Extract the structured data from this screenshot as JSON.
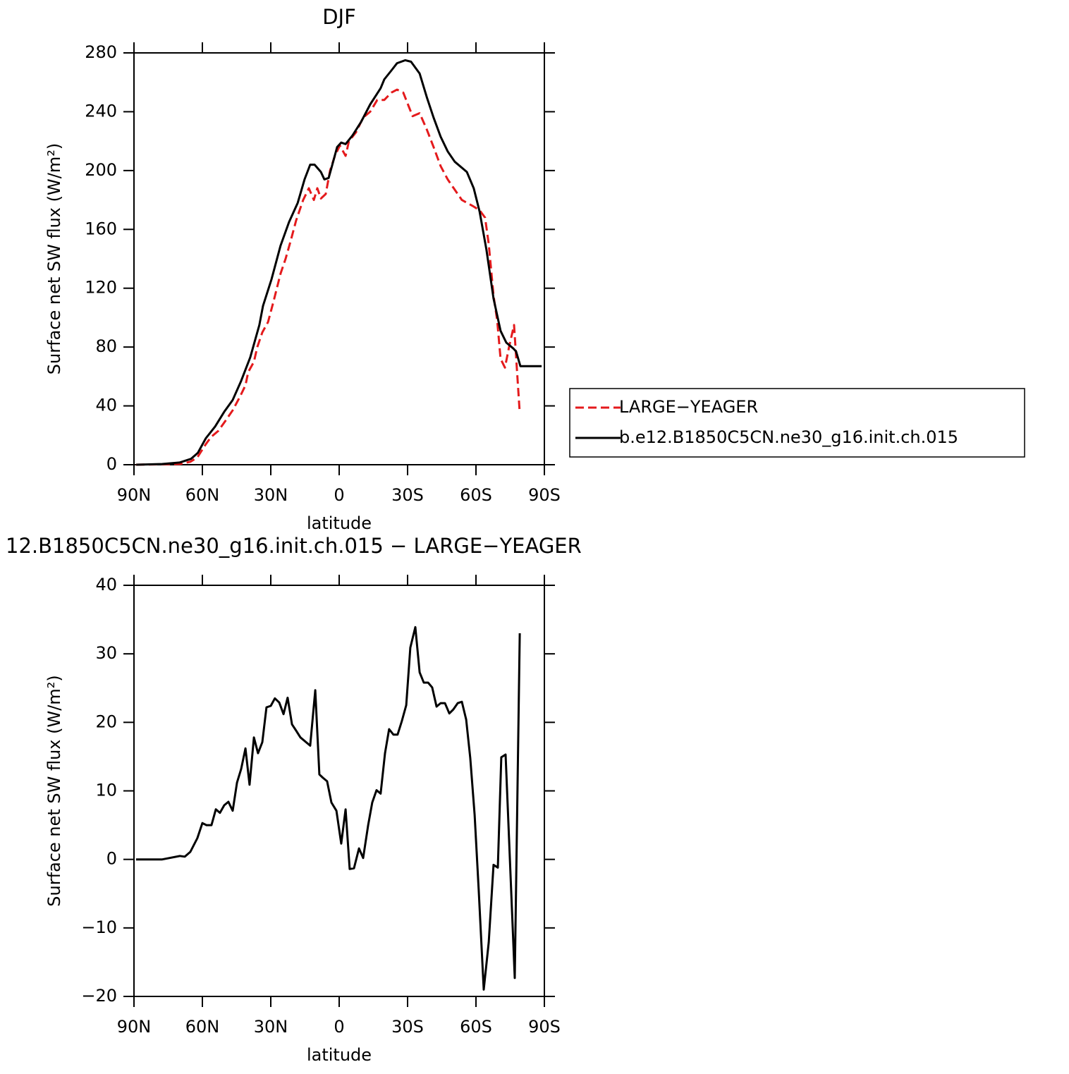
{
  "chart_data": [
    {
      "type": "line",
      "title": "DJF",
      "xlabel": "latitude",
      "ylabel": "Surface net SW flux (W/m²)",
      "xlim": [
        90,
        -90
      ],
      "ylim": [
        0,
        280
      ],
      "xticks": [
        {
          "value": 90,
          "label": "90N"
        },
        {
          "value": 60,
          "label": "60N"
        },
        {
          "value": 30,
          "label": "30N"
        },
        0,
        {
          "value": -30,
          "label": "30S"
        },
        {
          "value": -60,
          "label": "60S"
        },
        {
          "value": -90,
          "label": "90S"
        }
      ],
      "yticks": [
        0,
        40,
        80,
        120,
        160,
        200,
        240,
        280
      ],
      "legend": "right",
      "series": [
        {
          "name": "LARGE−YEAGER",
          "color": "#e41a1c",
          "dash": true,
          "x": [
            89.1,
            69.9,
            65.3,
            62.2,
            58.5,
            56.1,
            53,
            49.8,
            46.7,
            43.6,
            41.1,
            39.9,
            37.4,
            35.9,
            33.7,
            31.2,
            28.8,
            25.7,
            23.5,
            21.3,
            18.9,
            15.8,
            13.3,
            11.1,
            9.6,
            8,
            5.9,
            4,
            1.9,
            -0.3,
            -2.8,
            -4.3,
            -7.4,
            -10.5,
            -13.6,
            -16.7,
            -19.8,
            -22.9,
            -25.4,
            -28.1,
            -32.2,
            -35.3,
            -38.4,
            -41.4,
            -44.5,
            -47.6,
            -50.7,
            -53.8,
            -58.5,
            -61.6,
            -64,
            -65.6,
            -67.7,
            -69.3,
            -70.8,
            -72.7,
            -74.5,
            -76.7,
            -77.9,
            -79.2
          ],
          "values": [
            0,
            0.5,
            2,
            5,
            14,
            19,
            23,
            30,
            37,
            46,
            54,
            63,
            70,
            80,
            90,
            97,
            111,
            130,
            140,
            152,
            166,
            180,
            188,
            180,
            188,
            181,
            184,
            200,
            210,
            217,
            210,
            220,
            226,
            236,
            240,
            248,
            248,
            253,
            255,
            253,
            237,
            239,
            228,
            216,
            203,
            194,
            187,
            180,
            176,
            173,
            168,
            150,
            115,
            98,
            72,
            66,
            80,
            95,
            66,
            35
          ]
        },
        {
          "name": "b.e12.B1850C5CN.ne30_g16.init.ch.015",
          "color": "#000000",
          "dash": false,
          "x": [
            89,
            77.6,
            70,
            65,
            62,
            58.5,
            54.4,
            50.4,
            46.7,
            43,
            39,
            35,
            33.4,
            29.7,
            25.7,
            22,
            18.2,
            15.2,
            12.7,
            10.8,
            8,
            6.5,
            4.6,
            2.8,
            0.9,
            -0.9,
            -2.8,
            -5.9,
            -9.6,
            -13.6,
            -18.2,
            -19.8,
            -22.9,
            -25.4,
            -29,
            -31.5,
            -35.3,
            -38.4,
            -41.4,
            -44.5,
            -47.6,
            -50.7,
            -56,
            -59,
            -61.6,
            -64.6,
            -67.7,
            -70.8,
            -73.3,
            -76.4,
            -77.6,
            -79.5,
            -83.2,
            -88.8
          ],
          "values": [
            0,
            0.5,
            1.5,
            4,
            8,
            18,
            26,
            36,
            44,
            57,
            73,
            95,
            108,
            126,
            149,
            165,
            178,
            194,
            204,
            204,
            199,
            194,
            195,
            205,
            216,
            219,
            218,
            224,
            233,
            245,
            256,
            262,
            268,
            273,
            275,
            274,
            266,
            250,
            236,
            223,
            213,
            206,
            199,
            188,
            172,
            146,
            113,
            91,
            83,
            79,
            77,
            67,
            67,
            67
          ]
        }
      ]
    },
    {
      "type": "line",
      "title": "12.B1850C5CN.ne30_g16.init.ch.015 − LARGE−YEAGER",
      "xlabel": "latitude",
      "ylabel": "Surface net SW flux (W/m²)",
      "xlim": [
        90,
        -90
      ],
      "ylim": [
        -20,
        40
      ],
      "xticks": [
        {
          "value": 90,
          "label": "90N"
        },
        {
          "value": 60,
          "label": "60N"
        },
        {
          "value": 30,
          "label": "30N"
        },
        0,
        {
          "value": -30,
          "label": "30S"
        },
        {
          "value": -60,
          "label": "60S"
        },
        {
          "value": -90,
          "label": "90S"
        }
      ],
      "yticks": [
        {
          "value": -20,
          "label": "−20"
        },
        {
          "value": -10,
          "label": "−10"
        },
        0,
        10,
        20,
        30,
        40
      ],
      "color": "#000000",
      "x": [
        89.1,
        77.6,
        69.9,
        67.7,
        65.3,
        62.2,
        60,
        58.2,
        56,
        54.1,
        52.3,
        50.4,
        48.6,
        46.7,
        44.8,
        43,
        41.1,
        39.3,
        37.4,
        35.6,
        33.7,
        31.9,
        30,
        28.2,
        26.3,
        24.4,
        22.6,
        20.7,
        18.9,
        17,
        12.7,
        10.5,
        8.7,
        7.1,
        5.3,
        3.4,
        1.2,
        -0.9,
        -2.8,
        -4.6,
        -6.5,
        -8.7,
        -10.5,
        -12.7,
        -14.5,
        -16.4,
        -18.2,
        -20.1,
        -21.9,
        -23.8,
        -25.6,
        -27.5,
        -29.4,
        -31.2,
        -33.4,
        -35.3,
        -37.1,
        -39,
        -40.8,
        -42.7,
        -44.5,
        -46.4,
        -48.3,
        -50.1,
        -52,
        -53.8,
        -55.7,
        -57.5,
        -59.4,
        -61.2,
        -63.4,
        -65.6,
        -67.7,
        -69.6,
        -71.1,
        -73,
        -77,
        -79.2
      ],
      "values": [
        0,
        0,
        0.5,
        0.4,
        1.1,
        3.1,
        5.3,
        5,
        5,
        7.3,
        6.8,
        7.9,
        8.4,
        7.1,
        11.2,
        13.2,
        16.2,
        10.9,
        17.8,
        15.5,
        17.1,
        22.2,
        22.4,
        23.5,
        22.9,
        21.2,
        23.6,
        19.7,
        18.8,
        17.8,
        16.6,
        24.7,
        12.4,
        11.9,
        11.4,
        8.3,
        7.1,
        2.3,
        7.3,
        -1.4,
        -1.3,
        1.6,
        0.2,
        5,
        8.3,
        10.1,
        9.6,
        15.5,
        19,
        18.2,
        18.2,
        20.2,
        22.5,
        30.9,
        33.9,
        27.3,
        25.8,
        25.8,
        25.1,
        22.3,
        22.8,
        22.8,
        21.3,
        21.9,
        22.8,
        23,
        20.4,
        14.8,
        6.5,
        -4.5,
        -19,
        -12.1,
        -0.8,
        -1.2,
        14.9,
        15.3,
        -17.3,
        33
      ]
    }
  ]
}
